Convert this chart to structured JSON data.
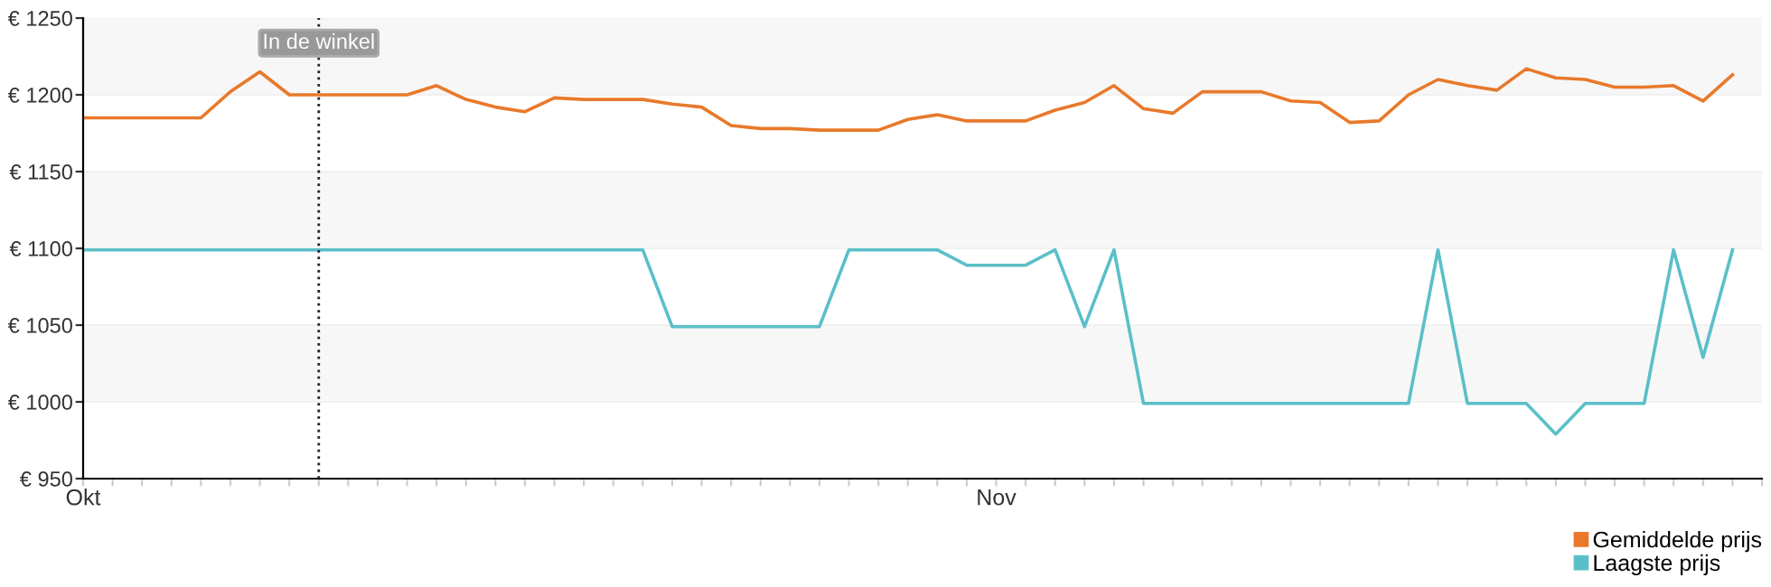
{
  "chart_data": {
    "type": "line",
    "categories": [
      "Okt",
      null,
      null,
      null,
      null,
      null,
      null,
      null,
      null,
      null,
      null,
      null,
      null,
      null,
      null,
      null,
      null,
      null,
      null,
      null,
      null,
      null,
      null,
      null,
      null,
      null,
      null,
      null,
      null,
      null,
      null,
      "Nov",
      null,
      null,
      null,
      null,
      null,
      null,
      null,
      null,
      null,
      null,
      null,
      null,
      null,
      null,
      null,
      null,
      null,
      null,
      null,
      null,
      null,
      null,
      null,
      null,
      null
    ],
    "series": [
      {
        "name": "Gemiddelde prijs",
        "color": "#e8792a",
        "values": [
          1185,
          1185,
          1185,
          1185,
          1185,
          1202,
          1215,
          1200,
          1200,
          1200,
          1200,
          1200,
          1206,
          1197,
          1192,
          1189,
          1198,
          1197,
          1197,
          1197,
          1194,
          1192,
          1180,
          1178,
          1178,
          1177,
          1177,
          1177,
          1184,
          1187,
          1183,
          1183,
          1183,
          1190,
          1195,
          1206,
          1191,
          1188,
          1202,
          1202,
          1202,
          1196,
          1195,
          1182,
          1183,
          1200,
          1210,
          1206,
          1203,
          1217,
          1211,
          1210,
          1205,
          1205,
          1206,
          1196,
          1213
        ]
      },
      {
        "name": "Laagste prijs",
        "color": "#5bbfc9",
        "values": [
          1099,
          1099,
          1099,
          1099,
          1099,
          1099,
          1099,
          1099,
          1099,
          1099,
          1099,
          1099,
          1099,
          1099,
          1099,
          1099,
          1099,
          1099,
          1099,
          1099,
          1049,
          1049,
          1049,
          1049,
          1049,
          1049,
          1099,
          1099,
          1099,
          1099,
          1089,
          1089,
          1089,
          1099,
          1049,
          1099,
          999,
          999,
          999,
          999,
          999,
          999,
          999,
          999,
          999,
          999,
          1099,
          999,
          999,
          999,
          979,
          999,
          999,
          999,
          1099,
          1029,
          1099
        ]
      }
    ],
    "ylim": [
      950,
      1250
    ],
    "yticks": [
      {
        "value": 950,
        "label": "€ 950"
      },
      {
        "value": 1000,
        "label": "€ 1000"
      },
      {
        "value": 1050,
        "label": "€ 1050"
      },
      {
        "value": 1100,
        "label": "€ 1100"
      },
      {
        "value": 1150,
        "label": "€ 1150"
      },
      {
        "value": 1200,
        "label": "€ 1200"
      },
      {
        "value": 1250,
        "label": "€ 1250"
      }
    ],
    "annotations": [
      "In de winkel"
    ],
    "grid": "y",
    "legend": "bottom right",
    "marker": "none",
    "line_style": "solid"
  }
}
